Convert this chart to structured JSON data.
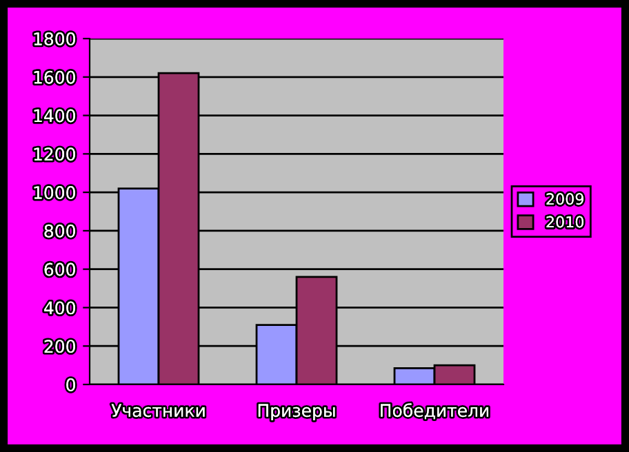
{
  "chart_data": {
    "type": "bar",
    "categories": [
      "Участники",
      "Призеры",
      "Победители"
    ],
    "series": [
      {
        "name": "2009",
        "color": "#9999ff",
        "values": [
          1020,
          310,
          85
        ]
      },
      {
        "name": "2010",
        "color": "#993366",
        "values": [
          1620,
          560,
          100
        ]
      }
    ],
    "ylim": [
      0,
      1800
    ],
    "yticks": [
      0,
      200,
      400,
      600,
      800,
      1000,
      1200,
      1400,
      1600,
      1800
    ],
    "grid": "y",
    "legend": "right"
  }
}
